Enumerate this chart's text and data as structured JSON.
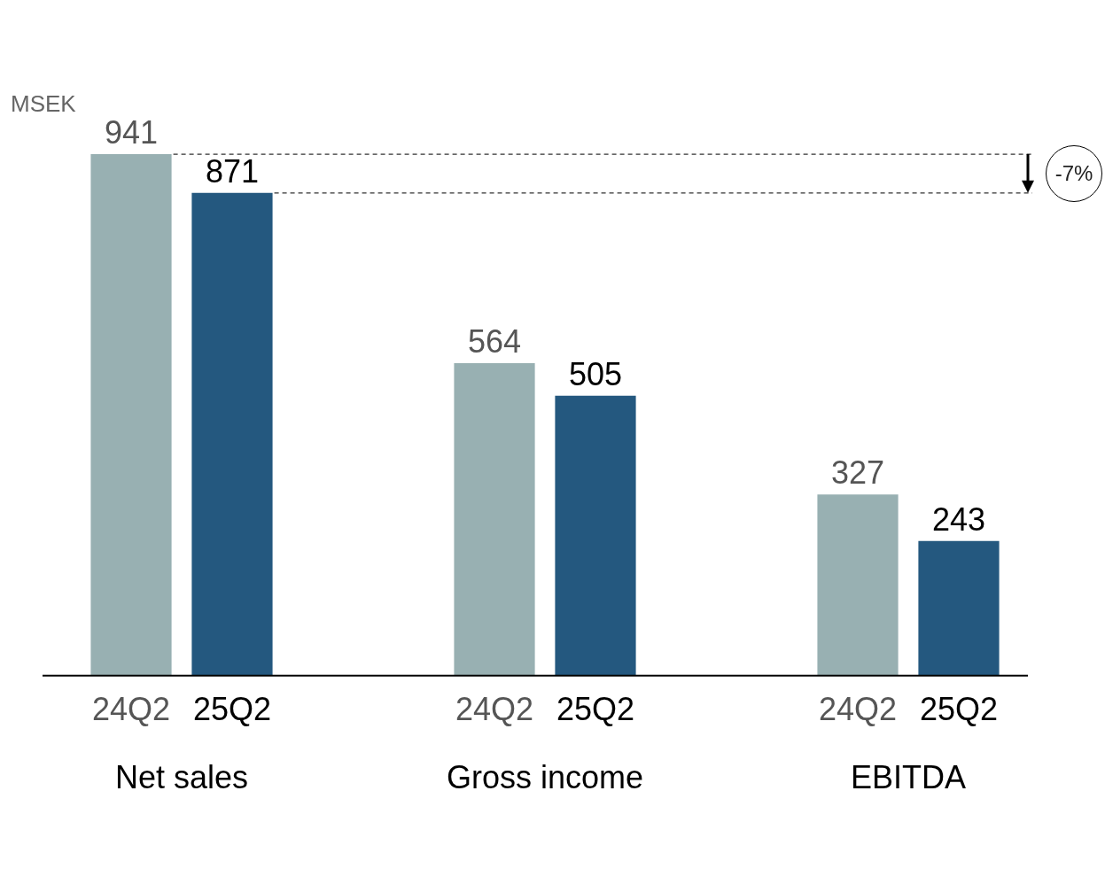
{
  "chart_data": {
    "type": "bar",
    "ylabel": "MSEK",
    "categories": [
      "Net sales",
      "Gross income",
      "EBITDA"
    ],
    "series": [
      {
        "name": "24Q2",
        "color": "#98b0b2",
        "values": [
          941,
          564,
          327
        ]
      },
      {
        "name": "25Q2",
        "color": "#24587f",
        "values": [
          871,
          505,
          243
        ]
      }
    ],
    "data_labels": true,
    "legend": false,
    "grid": false,
    "ref_lines": [
      {
        "axis": "y",
        "value": 941,
        "line_style": "dashed",
        "color": "#333333"
      },
      {
        "axis": "y",
        "value": 871,
        "line_style": "dashed",
        "color": "#333333"
      }
    ],
    "annotations": [
      "-7%"
    ]
  }
}
